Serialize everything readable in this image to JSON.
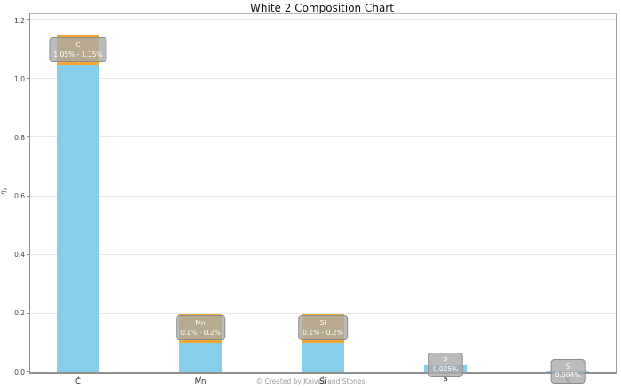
{
  "chart": {
    "title": "White 2 Composition Chart",
    "ylabel": "%",
    "footer": "© Created by Knives and Stones"
  },
  "chart_data": {
    "type": "bar",
    "title": "White 2 Composition Chart",
    "xlabel": "",
    "ylabel": "%",
    "ylim": [
      0,
      1.22
    ],
    "grid": true,
    "legend": false,
    "ytick_labels": [
      "0.0",
      "0.2",
      "0.4",
      "0.6",
      "0.8",
      "1.0",
      "1.2"
    ],
    "categories": [
      "C",
      "Mn",
      "Si",
      "P",
      "S"
    ],
    "bars": [
      {
        "label": "C",
        "low": 1.05,
        "high": 1.15,
        "range_text": "1.05% - 1.15%"
      },
      {
        "label": "Mn",
        "low": 0.1,
        "high": 0.2,
        "range_text": "0.1% - 0.2%"
      },
      {
        "label": "Si",
        "low": 0.1,
        "high": 0.2,
        "range_text": "0.1% - 0.2%"
      },
      {
        "label": "P",
        "value": 0.025,
        "range_text": "0.025%"
      },
      {
        "label": "S",
        "value": 0.004,
        "range_text": "0.004%"
      }
    ],
    "colors": {
      "bar_fill": "#87CEEB",
      "range_band": "#F0A830",
      "label_box_fill": "rgba(170,170,170,0.8)",
      "label_box_border": "#8c8c8c",
      "label_text": "#ffffff"
    },
    "footer": "© Created by Knives and Stones"
  }
}
